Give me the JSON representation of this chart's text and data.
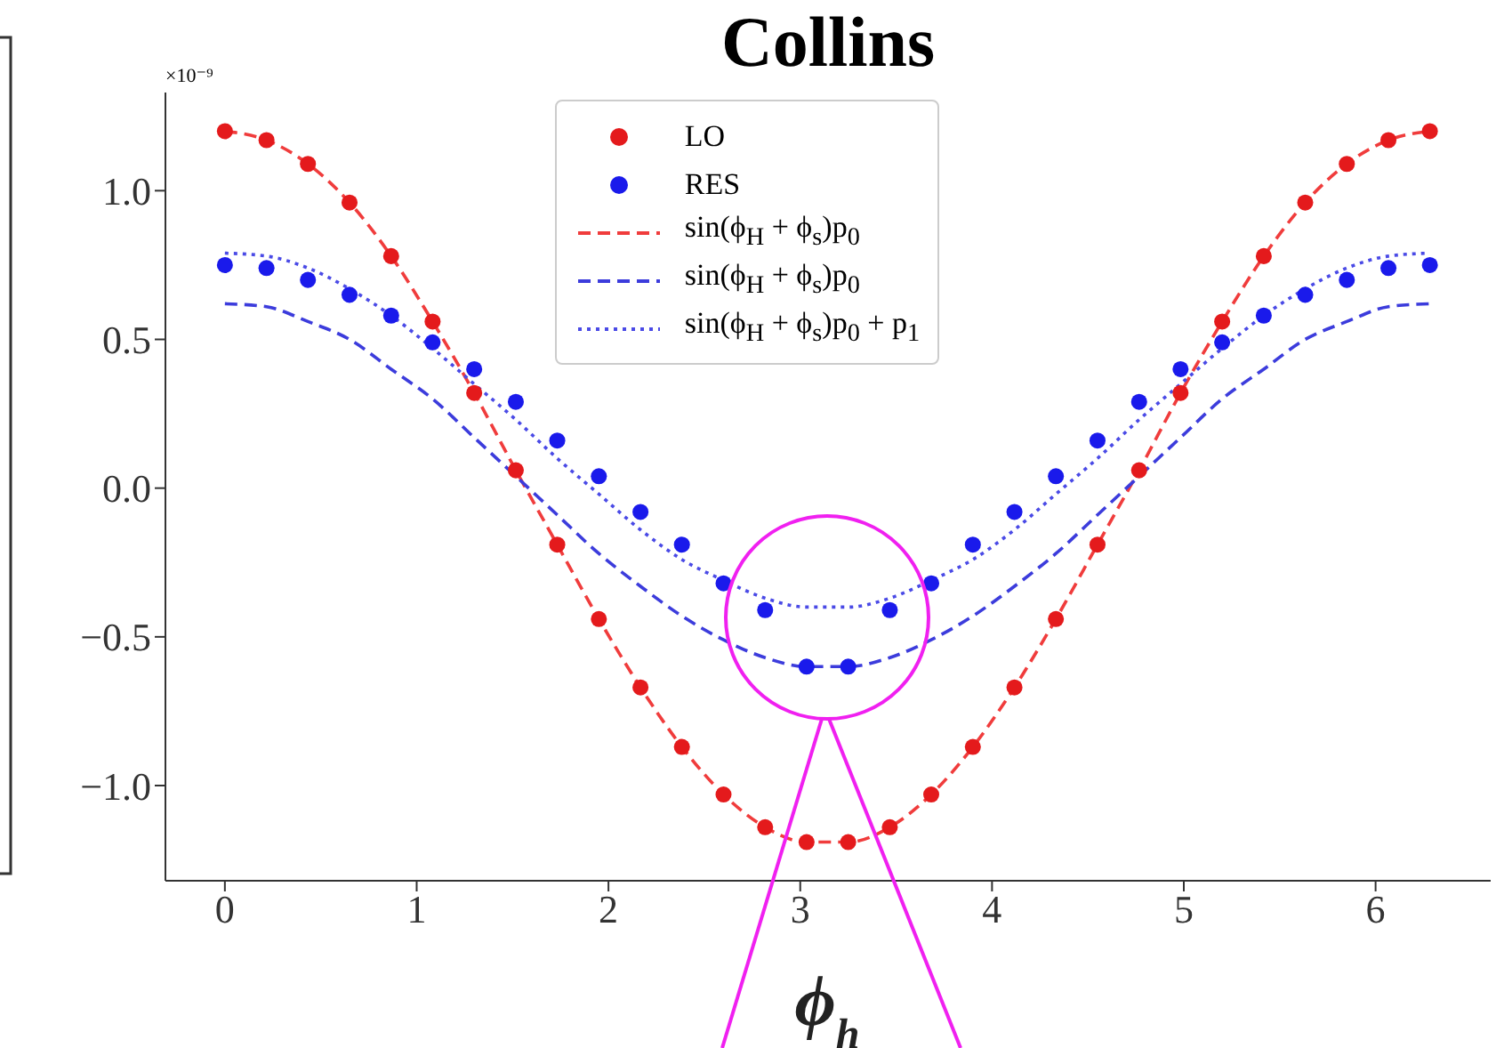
{
  "chart_data": {
    "type": "scatter",
    "title": "Collins",
    "xlabel": "ϕ$_{h}$",
    "annotations": [
      "×10⁻⁹"
    ],
    "x": [
      0,
      0.217,
      0.433,
      0.65,
      0.867,
      1.083,
      1.3,
      1.517,
      1.733,
      1.95,
      2.167,
      2.383,
      2.6,
      2.817,
      3.033,
      3.25,
      3.467,
      3.683,
      3.9,
      4.117,
      4.333,
      4.55,
      4.767,
      4.983,
      5.2,
      5.417,
      5.633,
      5.85,
      6.067,
      6.283
    ],
    "series": [
      {
        "name": "LO",
        "marker": "circle",
        "color": "#e41a1c",
        "values": [
          1.2,
          1.17,
          1.09,
          0.96,
          0.78,
          0.56,
          0.32,
          0.06,
          -0.19,
          -0.44,
          -0.67,
          -0.87,
          -1.03,
          -1.14,
          -1.19,
          -1.19,
          -1.14,
          -1.03,
          -0.87,
          -0.67,
          -0.44,
          -0.19,
          0.06,
          0.32,
          0.56,
          0.78,
          0.96,
          1.09,
          1.17,
          1.2
        ]
      },
      {
        "name": "RES",
        "marker": "circle",
        "color": "#1a1aeb",
        "values": [
          0.75,
          0.74,
          0.7,
          0.65,
          0.58,
          0.49,
          0.4,
          0.29,
          0.16,
          0.04,
          -0.08,
          -0.19,
          -0.32,
          -0.41,
          -0.6,
          -0.6,
          -0.41,
          -0.32,
          -0.19,
          -0.08,
          0.04,
          0.16,
          0.29,
          0.4,
          0.49,
          0.58,
          0.65,
          0.7,
          0.74,
          0.75
        ]
      },
      {
        "name": "sin(ϕ$_{H}$ + ϕ$_{s}$)p$_{0}$",
        "type": "line",
        "marker": "none",
        "line_style": "dashed",
        "color": "#f03c3c",
        "values": [
          1.2,
          1.17,
          1.09,
          0.96,
          0.78,
          0.56,
          0.32,
          0.06,
          -0.19,
          -0.44,
          -0.67,
          -0.87,
          -1.03,
          -1.14,
          -1.19,
          -1.19,
          -1.14,
          -1.03,
          -0.87,
          -0.67,
          -0.44,
          -0.19,
          0.06,
          0.32,
          0.56,
          0.78,
          0.96,
          1.09,
          1.17,
          1.2
        ]
      },
      {
        "name": "sin(ϕ$_{H}$ + ϕ$_{s}$)p$_{0}$",
        "type": "line",
        "marker": "none",
        "line_style": "dashed",
        "color": "#3c3cdc",
        "values": [
          0.62,
          0.61,
          0.56,
          0.5,
          0.4,
          0.3,
          0.17,
          0.04,
          -0.09,
          -0.22,
          -0.33,
          -0.43,
          -0.51,
          -0.57,
          -0.6,
          -0.6,
          -0.57,
          -0.51,
          -0.43,
          -0.33,
          -0.22,
          -0.09,
          0.04,
          0.17,
          0.3,
          0.4,
          0.5,
          0.56,
          0.61,
          0.62
        ]
      },
      {
        "name": "sin(ϕ$_{H}$ + ϕ$_{s}$)p$_{0}$ + p$_{1}$",
        "type": "line",
        "marker": "none",
        "line_style": "dotted",
        "color": "#4a4ae6",
        "values": [
          0.79,
          0.78,
          0.74,
          0.67,
          0.58,
          0.47,
          0.35,
          0.23,
          0.1,
          -0.02,
          -0.14,
          -0.24,
          -0.31,
          -0.37,
          -0.4,
          -0.4,
          -0.37,
          -0.31,
          -0.24,
          -0.14,
          -0.02,
          0.1,
          0.23,
          0.35,
          0.47,
          0.58,
          0.67,
          0.74,
          0.78,
          0.79
        ]
      }
    ],
    "xlim": [
      -0.31,
      6.6
    ],
    "xticks": [
      0,
      1,
      2,
      3,
      4,
      5,
      6
    ],
    "ylim": [
      -1.32,
      1.33
    ],
    "yticks": [
      {
        "value": -1,
        "label": "−1.0"
      },
      {
        "value": -0.5,
        "label": "−0.5"
      },
      {
        "value": 0,
        "label": "0.0"
      },
      {
        "value": 0.5,
        "label": "0.5"
      },
      {
        "value": 1,
        "label": "1.0"
      }
    ],
    "grid": false,
    "legend": "top"
  }
}
